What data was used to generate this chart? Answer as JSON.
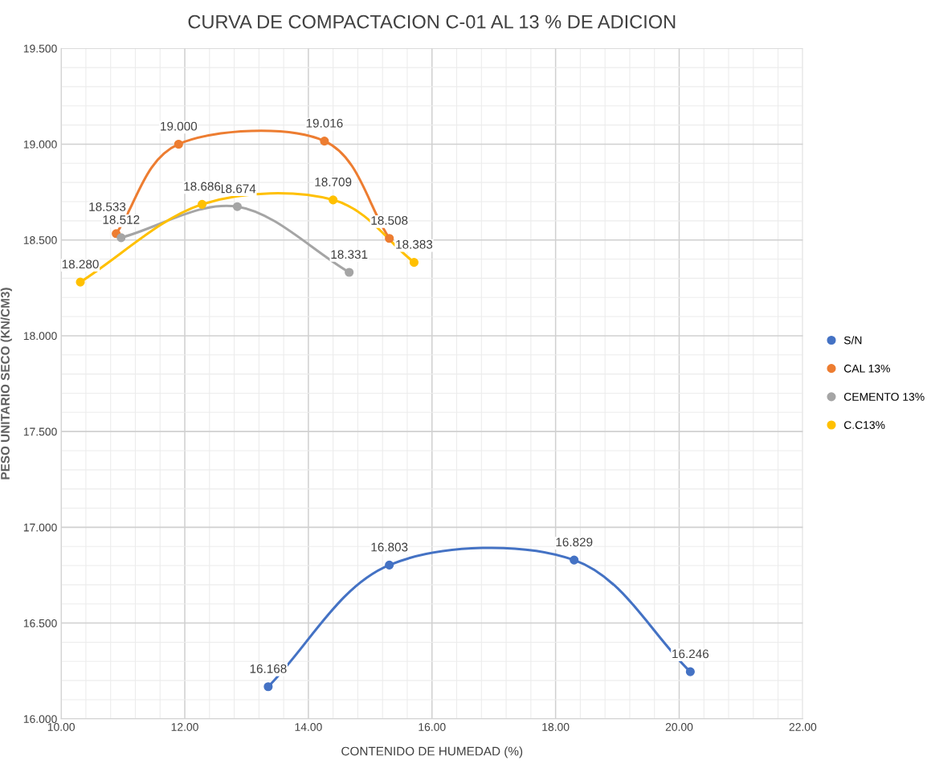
{
  "chart_data": {
    "type": "line",
    "title": "CURVA DE COMPACTACION C-01 AL 13 % DE ADICION",
    "xlabel": "CONTENIDO DE HUMEDAD (%)",
    "ylabel": "PESO UNITARIO SECO (KN/CM3)",
    "xlim": [
      10,
      22
    ],
    "ylim": [
      16,
      19.5
    ],
    "xticks": [
      {
        "value": 10,
        "label": "10.00"
      },
      {
        "value": 12,
        "label": "12.00"
      },
      {
        "value": 14,
        "label": "14.00"
      },
      {
        "value": 16,
        "label": "16.00"
      },
      {
        "value": 18,
        "label": "18.00"
      },
      {
        "value": 20,
        "label": "20.00"
      },
      {
        "value": 22,
        "label": "22.00"
      }
    ],
    "yticks": [
      {
        "value": 16,
        "label": "16.000"
      },
      {
        "value": 16.5,
        "label": "16.500"
      },
      {
        "value": 17,
        "label": "17.000"
      },
      {
        "value": 17.5,
        "label": "17.500"
      },
      {
        "value": 18,
        "label": "18.000"
      },
      {
        "value": 18.5,
        "label": "18.500"
      },
      {
        "value": 19,
        "label": "19.000"
      },
      {
        "value": 19.5,
        "label": "19.500"
      }
    ],
    "grid": true,
    "legend": "right",
    "marker": "circle",
    "line_style": "solid",
    "series": [
      {
        "name": "S/N",
        "color": "#4472c4",
        "x": [
          13.35,
          15.31,
          18.3,
          20.18
        ],
        "values": [
          16.168,
          16.803,
          16.829,
          16.246
        ],
        "value_labels": [
          "16.168",
          "16.803",
          "16.829",
          "16.246"
        ]
      },
      {
        "name": "CAL 13%",
        "color": "#ed7d31",
        "x": [
          10.89,
          11.9,
          14.26,
          15.31
        ],
        "values": [
          18.533,
          19.0,
          19.016,
          18.508
        ],
        "value_labels": [
          "18.533",
          "19.000",
          "19.016",
          "18.508"
        ]
      },
      {
        "name": "CEMENTO 13%",
        "color": "#a5a5a5",
        "x": [
          10.97,
          12.85,
          14.66
        ],
        "values": [
          18.512,
          18.674,
          18.331
        ],
        "value_labels": [
          "18.512",
          "18.674",
          "18.331"
        ]
      },
      {
        "name": "C.C13%",
        "color": "#ffc000",
        "x": [
          10.31,
          12.28,
          14.4,
          15.71
        ],
        "values": [
          18.28,
          18.686,
          18.709,
          18.383
        ],
        "value_labels": [
          "18.280",
          "18.686",
          "18.709",
          "18.383"
        ]
      }
    ]
  }
}
